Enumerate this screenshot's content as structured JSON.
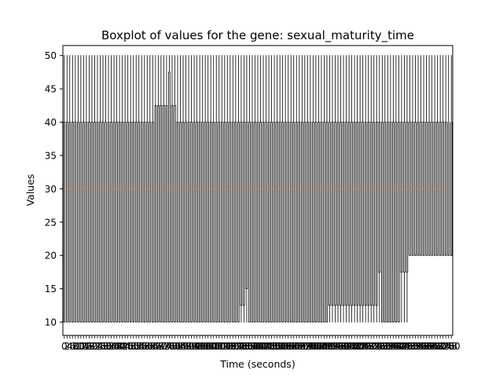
{
  "chart_data": {
    "type": "boxplot",
    "title": "Boxplot of values for the gene: sexual_maturity_time",
    "xlabel": "Time (seconds)",
    "ylabel": "Values",
    "ylim": [
      8,
      51.5
    ],
    "yticks": [
      10,
      15,
      20,
      25,
      30,
      35,
      40,
      45,
      50
    ],
    "x_categories_start": 0,
    "x_categories_end": 140,
    "x_tick_step": 2,
    "x_tick_last_label": "280",
    "series_summary": {
      "min": 10,
      "max": 50,
      "q3": 40,
      "median_default": 30,
      "q1_default": 10
    },
    "boxes": [
      {
        "range": [
          0,
          32
        ],
        "min": 10,
        "q1": 10,
        "median": 30,
        "q3": 40,
        "max": 50
      },
      {
        "range": [
          33,
          37
        ],
        "min": 10,
        "q1": 10,
        "median": 30,
        "q3": 42.5,
        "max": 50
      },
      {
        "range": [
          38,
          38
        ],
        "min": 10,
        "q1": 10,
        "median": 30,
        "q3": 47.5,
        "max": 50
      },
      {
        "range": [
          39,
          40
        ],
        "min": 10,
        "q1": 10,
        "median": 30,
        "q3": 42.5,
        "max": 50
      },
      {
        "range": [
          41,
          63
        ],
        "min": 10,
        "q1": 10,
        "median": 30,
        "q3": 40,
        "max": 50
      },
      {
        "range": [
          64,
          65
        ],
        "min": 10,
        "q1": 12.5,
        "median": 30,
        "q3": 40,
        "max": 50
      },
      {
        "range": [
          66,
          66
        ],
        "min": 10,
        "q1": 15,
        "median": 30,
        "q3": 40,
        "max": 50
      },
      {
        "range": [
          67,
          95
        ],
        "min": 10,
        "q1": 10,
        "median": 30,
        "q3": 40,
        "max": 50
      },
      {
        "range": [
          96,
          100
        ],
        "min": 10,
        "q1": 12.5,
        "median": 30,
        "q3": 40,
        "max": 50
      },
      {
        "range": [
          101,
          113
        ],
        "min": 10,
        "q1": 12.5,
        "median": 30,
        "q3": 40,
        "max": 50
      },
      {
        "range": [
          114,
          114
        ],
        "min": 10,
        "q1": 17.5,
        "median": 30,
        "q3": 40,
        "max": 50
      },
      {
        "range": [
          115,
          121
        ],
        "min": 10,
        "q1": 10,
        "median": 30,
        "q3": 40,
        "max": 50
      },
      {
        "range": [
          122,
          124
        ],
        "min": 10,
        "q1": 17.5,
        "median": 30,
        "q3": 40,
        "max": 50
      },
      {
        "range": [
          125,
          136
        ],
        "min": 20,
        "q1": 20,
        "median": 30,
        "q3": 40,
        "max": 50
      },
      {
        "range": [
          137,
          138
        ],
        "min": 20,
        "q1": 20,
        "median": 35,
        "q3": 40,
        "max": 50
      },
      {
        "range": [
          139,
          140
        ],
        "min": 20,
        "q1": 20,
        "median": 40,
        "q3": 40,
        "max": 50
      }
    ]
  },
  "colors": {
    "box": "#000000",
    "median": "#ff7f0e",
    "background": "#ffffff"
  }
}
